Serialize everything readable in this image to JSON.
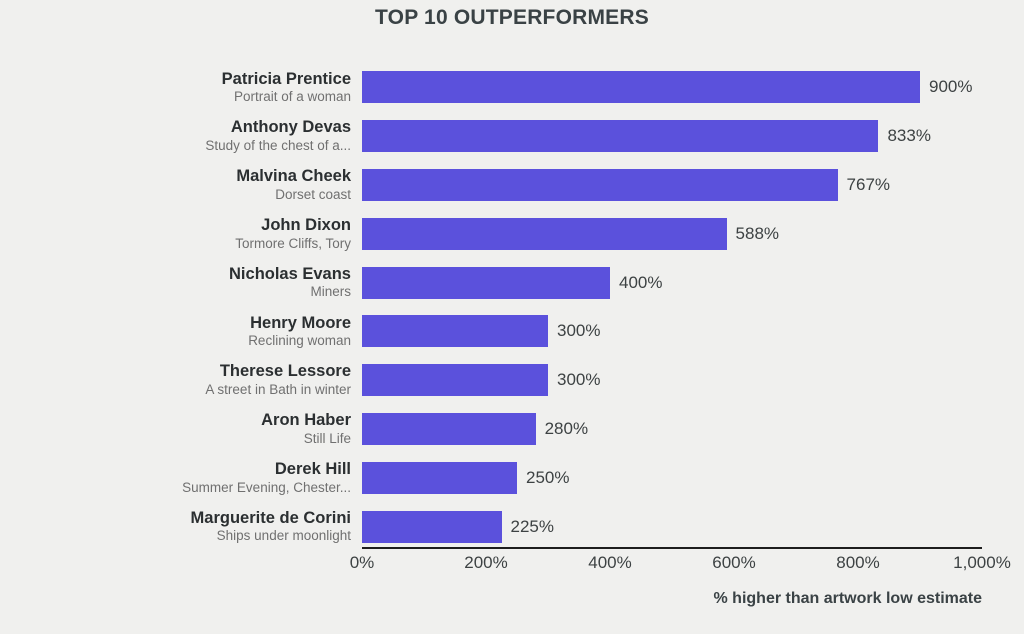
{
  "title": "TOP 10 OUTPERFORMERS",
  "chart_data": {
    "type": "bar",
    "orientation": "horizontal",
    "title": "TOP 10 OUTPERFORMERS",
    "xlabel": "% higher than artwork low estimate",
    "xlim": [
      0,
      1000
    ],
    "x_tick_labels": [
      "0%",
      "200%",
      "400%",
      "600%",
      "800%",
      "1,000%"
    ],
    "x_tick_values": [
      0,
      200,
      400,
      600,
      800,
      1000
    ],
    "grid": false,
    "legend": "none",
    "bar_color": "#5b51dc",
    "background_color": "#f0f0ee",
    "rows": [
      {
        "artist": "Patricia Prentice",
        "artwork": "Portrait of a woman",
        "value": 900,
        "value_label": "900%"
      },
      {
        "artist": "Anthony Devas",
        "artwork": "Study of the chest of a...",
        "value": 833,
        "value_label": "833%"
      },
      {
        "artist": "Malvina Cheek",
        "artwork": "Dorset coast",
        "value": 767,
        "value_label": "767%"
      },
      {
        "artist": "John Dixon",
        "artwork": "Tormore Cliffs, Tory",
        "value": 588,
        "value_label": "588%"
      },
      {
        "artist": "Nicholas Evans",
        "artwork": "Miners",
        "value": 400,
        "value_label": "400%"
      },
      {
        "artist": "Henry Moore",
        "artwork": "Reclining woman",
        "value": 300,
        "value_label": "300%"
      },
      {
        "artist": "Therese Lessore",
        "artwork": "A street in Bath in winter",
        "value": 300,
        "value_label": "300%"
      },
      {
        "artist": "Aron Haber",
        "artwork": "Still Life",
        "value": 280,
        "value_label": "280%"
      },
      {
        "artist": "Derek Hill",
        "artwork": "Summer Evening, Chester...",
        "value": 250,
        "value_label": "250%"
      },
      {
        "artist": "Marguerite de Corini",
        "artwork": "Ships under moonlight",
        "value": 225,
        "value_label": "225%"
      }
    ]
  }
}
